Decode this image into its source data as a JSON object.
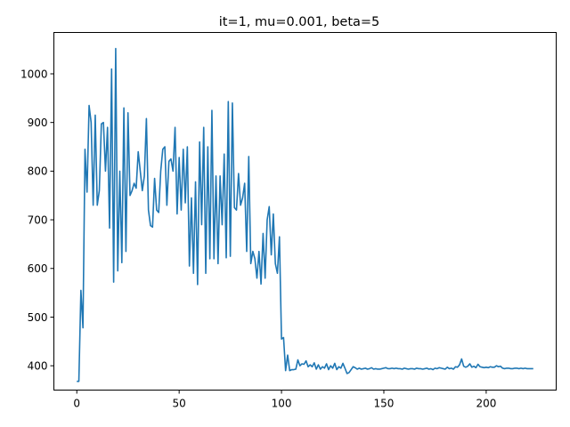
{
  "chart_data": {
    "type": "line",
    "title": "it=1, mu=0.001, beta=5",
    "xlabel": "",
    "ylabel": "",
    "xlim": [
      -11.2,
      234.2
    ],
    "ylim": [
      350,
      1085
    ],
    "xticks": [
      0,
      50,
      100,
      150,
      200
    ],
    "yticks": [
      400,
      500,
      600,
      700,
      800,
      900,
      1000
    ],
    "grid": false,
    "legend": "none",
    "line_color": "#1f77b4",
    "series": [
      {
        "x": [
          0,
          1,
          2,
          3,
          4,
          5,
          6,
          7,
          8,
          9,
          10,
          11,
          12,
          13,
          14,
          15,
          16,
          17,
          18,
          19,
          20,
          21,
          22,
          23,
          24,
          25,
          26,
          27,
          28,
          29,
          30,
          31,
          32,
          33,
          34,
          35,
          36,
          37,
          38,
          39,
          40,
          41,
          42,
          43,
          44,
          45,
          46,
          47,
          48,
          49,
          50,
          51,
          52,
          53,
          54,
          55,
          56,
          57,
          58,
          59,
          60,
          61,
          62,
          63,
          64,
          65,
          66,
          67,
          68,
          69,
          70,
          71,
          72,
          73,
          74,
          75,
          76,
          77,
          78,
          79,
          80,
          81,
          82,
          83,
          84,
          85,
          86,
          87,
          88,
          89,
          90,
          91,
          92,
          93,
          94,
          95,
          96,
          97,
          98,
          99,
          100,
          101,
          102,
          103,
          104,
          105,
          106,
          107,
          108,
          109,
          110,
          111,
          112,
          113,
          114,
          115,
          116,
          117,
          118,
          119,
          120,
          121,
          122,
          123,
          124,
          125,
          126,
          127,
          128,
          129,
          130,
          131,
          132,
          133,
          134,
          135,
          136,
          137,
          138,
          139,
          140,
          141,
          142,
          143,
          144,
          145,
          146,
          147,
          148,
          149,
          150,
          151,
          152,
          153,
          154,
          155,
          156,
          157,
          158,
          159,
          160,
          161,
          162,
          163,
          164,
          165,
          166,
          167,
          168,
          169,
          170,
          171,
          172,
          173,
          174,
          175,
          176,
          177,
          178,
          179,
          180,
          181,
          182,
          183,
          184,
          185,
          186,
          187,
          188,
          189,
          190,
          191,
          192,
          193,
          194,
          195,
          196,
          197,
          198,
          199,
          200,
          201,
          202,
          203,
          204,
          205,
          206,
          207,
          208,
          209,
          210,
          211,
          212,
          213,
          214,
          215,
          216,
          217,
          218,
          219,
          220,
          221,
          222,
          223
        ],
        "y": [
          368,
          368,
          555,
          478,
          845,
          757,
          935,
          900,
          730,
          915,
          730,
          760,
          897,
          900,
          800,
          890,
          683,
          1010,
          572,
          1052,
          595,
          800,
          612,
          930,
          635,
          920,
          750,
          760,
          775,
          765,
          840,
          800,
          760,
          790,
          908,
          720,
          688,
          685,
          785,
          720,
          715,
          800,
          845,
          850,
          730,
          820,
          825,
          800,
          890,
          712,
          828,
          720,
          845,
          735,
          850,
          605,
          745,
          590,
          778,
          567,
          860,
          690,
          890,
          590,
          850,
          620,
          925,
          620,
          790,
          610,
          790,
          690,
          835,
          622,
          943,
          625,
          940,
          725,
          720,
          795,
          730,
          745,
          775,
          635,
          830,
          610,
          635,
          620,
          580,
          635,
          568,
          672,
          580,
          700,
          727,
          628,
          712,
          610,
          590,
          665,
          455,
          458,
          390,
          422,
          390,
          392,
          392,
          393,
          412,
          400,
          404,
          403,
          410,
          398,
          402,
          398,
          406,
          393,
          402,
          393,
          398,
          395,
          404,
          392,
          400,
          395,
          405,
          392,
          398,
          395,
          405,
          395,
          384,
          386,
          392,
          398,
          396,
          393,
          395,
          393,
          394,
          395,
          393,
          394,
          396,
          393,
          394,
          393,
          393,
          394,
          395,
          396,
          394,
          394,
          395,
          394,
          395,
          394,
          394,
          393,
          395,
          394,
          393,
          394,
          394,
          393,
          395,
          394,
          394,
          393,
          394,
          395,
          393,
          394,
          392,
          395,
          394,
          396,
          395,
          394,
          393,
          397,
          394,
          395,
          393,
          398,
          397,
          402,
          414,
          399,
          397,
          399,
          404,
          397,
          399,
          396,
          403,
          398,
          397,
          396,
          397,
          396,
          398,
          397,
          397,
          400,
          398,
          399,
          395,
          394,
          395,
          395,
          394,
          394,
          395,
          395,
          394,
          395,
          394,
          395,
          394,
          394,
          394,
          394
        ]
      }
    ]
  }
}
